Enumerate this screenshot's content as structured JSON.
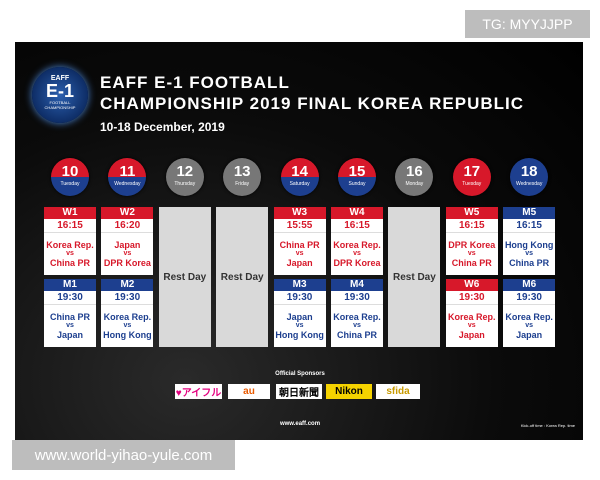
{
  "watermark_top": "TG: MYYJJPP",
  "watermark_bottom": "www.world-yihao-yule.com",
  "logo": {
    "brand": "EAFF",
    "mark": "E-1",
    "sub": "FOOTBALL CHAMPIONSHIP"
  },
  "header": {
    "title_line1": "EAFF E-1 FOOTBALL",
    "title_line2": "CHAMPIONSHIP 2019 FINAL KOREA REPUBLIC",
    "dates": "10-18 December, 2019"
  },
  "days": [
    {
      "day": "10",
      "weekday": "Tuesday",
      "matches": [
        {
          "code": "W1",
          "time": "16:15",
          "home": "Korea Rep.",
          "vs": "vs",
          "away": "China PR"
        },
        {
          "code": "M1",
          "time": "19:30",
          "home": "China PR",
          "vs": "vs",
          "away": "Japan"
        }
      ]
    },
    {
      "day": "11",
      "weekday": "Wednesday",
      "matches": [
        {
          "code": "W2",
          "time": "16:20",
          "home": "Japan",
          "vs": "vs",
          "away": "DPR Korea"
        },
        {
          "code": "M2",
          "time": "19:30",
          "home": "Korea Rep.",
          "vs": "vs",
          "away": "Hong Kong"
        }
      ]
    },
    {
      "day": "12",
      "weekday": "Thursday",
      "rest": "Rest Day"
    },
    {
      "day": "13",
      "weekday": "Friday",
      "rest": "Rest Day"
    },
    {
      "day": "14",
      "weekday": "Saturday",
      "matches": [
        {
          "code": "W3",
          "time": "15:55",
          "home": "China PR",
          "vs": "vs",
          "away": "Japan"
        },
        {
          "code": "M3",
          "time": "19:30",
          "home": "Japan",
          "vs": "vs",
          "away": "Hong Kong"
        }
      ]
    },
    {
      "day": "15",
      "weekday": "Sunday",
      "matches": [
        {
          "code": "W4",
          "time": "16:15",
          "home": "Korea Rep.",
          "vs": "vs",
          "away": "DPR Korea"
        },
        {
          "code": "M4",
          "time": "19:30",
          "home": "Korea Rep.",
          "vs": "vs",
          "away": "China PR"
        }
      ]
    },
    {
      "day": "16",
      "weekday": "Monday",
      "rest": "Rest Day"
    },
    {
      "day": "17",
      "weekday": "Tuesday",
      "matches": [
        {
          "code": "W5",
          "time": "16:15",
          "home": "DPR Korea",
          "vs": "vs",
          "away": "China PR"
        },
        {
          "code": "W6",
          "time": "19:30",
          "home": "Korea Rep.",
          "vs": "vs",
          "away": "Japan"
        }
      ]
    },
    {
      "day": "18",
      "weekday": "Wednesday",
      "matches": [
        {
          "code": "M5",
          "time": "16:15",
          "home": "Hong Kong",
          "vs": "vs",
          "away": "China PR"
        },
        {
          "code": "M6",
          "time": "19:30",
          "home": "Korea Rep.",
          "vs": "vs",
          "away": "Japan"
        }
      ]
    }
  ],
  "sponsors": {
    "label": "Official Sponsors",
    "items": [
      "♥アイフル",
      "au",
      "朝日新聞",
      "Nikon",
      "sfida"
    ]
  },
  "footer": {
    "url": "www.eaff.com",
    "note": "Kick-off time : Korea Rep. time"
  }
}
